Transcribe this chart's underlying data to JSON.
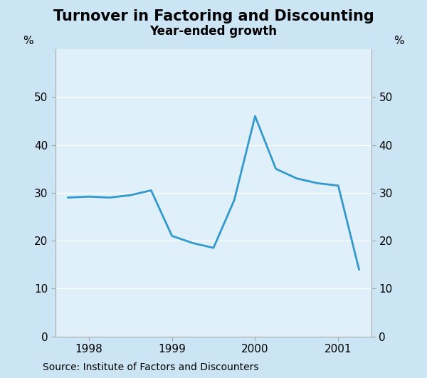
{
  "title": "Turnover in Factoring and Discounting",
  "subtitle": "Year-ended growth",
  "source": "Source: Institute of Factors and Discounters",
  "ylabel_left": "%",
  "ylabel_right": "%",
  "background_color": "#cce5f5",
  "plot_background_color": "#dff0fa",
  "grid_color": "#ffffff",
  "spine_color": "#aaaaaa",
  "line_color": "#3399cc",
  "line_width": 2.0,
  "ylim": [
    0,
    60
  ],
  "yticks": [
    0,
    10,
    20,
    30,
    40,
    50
  ],
  "x_values": [
    1997.75,
    1998.0,
    1998.25,
    1998.5,
    1998.75,
    1999.0,
    1999.25,
    1999.5,
    1999.75,
    2000.0,
    2000.25,
    2000.5,
    2000.75,
    2001.0,
    2001.25
  ],
  "y_values": [
    29.0,
    29.2,
    29.0,
    29.5,
    30.5,
    21.0,
    19.5,
    18.5,
    28.5,
    46.0,
    35.0,
    33.0,
    32.0,
    31.5,
    14.0
  ],
  "xticks": [
    1998,
    1999,
    2000,
    2001
  ],
  "xlim": [
    1997.6,
    2001.4
  ],
  "title_fontsize": 15,
  "subtitle_fontsize": 12,
  "tick_fontsize": 11,
  "source_fontsize": 10
}
